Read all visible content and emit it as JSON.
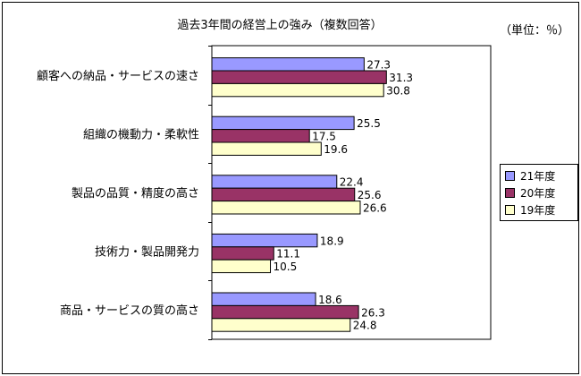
{
  "chart_data": {
    "type": "bar",
    "orientation": "horizontal",
    "title": "過去3年間の経営上の強み（複数回答）",
    "unit_label": "（単位：％）",
    "categories": [
      "顧客への納品・サービスの速さ",
      "組織の機動力・柔軟性",
      "製品の品質・精度の高さ",
      "技術力・製品開発力",
      "商品・サービスの質の高さ"
    ],
    "series": [
      {
        "name": "21年度",
        "values": [
          27.3,
          25.5,
          22.4,
          18.9,
          18.6
        ],
        "color": "#9999FF"
      },
      {
        "name": "20年度",
        "values": [
          31.3,
          17.5,
          25.6,
          11.1,
          26.3
        ],
        "color": "#993366"
      },
      {
        "name": "19年度",
        "values": [
          30.8,
          19.6,
          26.6,
          10.5,
          24.8
        ],
        "color": "#FFFFCC"
      }
    ],
    "data_labels": true,
    "grid": false,
    "legend_position": "right",
    "xlim": [
      0,
      50
    ]
  }
}
